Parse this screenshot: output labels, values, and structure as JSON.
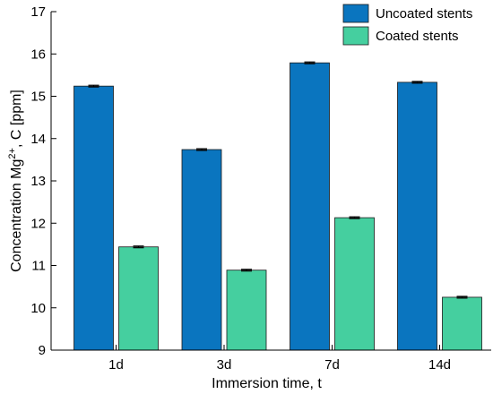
{
  "chart_data": {
    "type": "bar",
    "categories": [
      "1d",
      "3d",
      "7d",
      "14d"
    ],
    "series": [
      {
        "name": "Uncoated stents",
        "color": "#0a75bf",
        "values": [
          15.24,
          13.74,
          15.79,
          15.33
        ],
        "errors": [
          0.02,
          0.02,
          0.02,
          0.02
        ]
      },
      {
        "name": "Coated stents",
        "color": "#45cf9f",
        "values": [
          11.44,
          10.89,
          12.13,
          10.25
        ],
        "errors": [
          0.02,
          0.02,
          0.02,
          0.02
        ]
      }
    ],
    "xlabel": "Immersion time, t",
    "ylabel": {
      "prefix": "Concentration Mg",
      "sup": "2+",
      "suffix": ", C [ppm]"
    },
    "ylim": [
      9,
      17
    ],
    "yticks": [
      9,
      10,
      11,
      12,
      13,
      14,
      15,
      16,
      17
    ],
    "legend_position": "top-right",
    "grid": false
  }
}
